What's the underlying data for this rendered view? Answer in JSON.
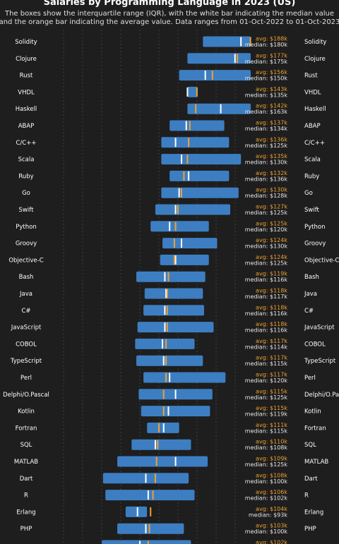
{
  "chart_data": {
    "type": "box",
    "title": "Salaries by Programming Language in 2023 (US)",
    "subtitle_lines": [
      "The boxes show the interquartile range (IQR), with the white bar indicating the median value",
      "and the orange bar indicating the average value. Data ranges from 01-Oct-2022 to 01-Oct-2023"
    ],
    "avg_prefix": "avg: ",
    "median_prefix": "median: ",
    "colors": {
      "background": "#1e1e1e",
      "box": "#3d7ec2",
      "median": "#ffffff",
      "average": "#f0a030",
      "grid": "#555555"
    },
    "grid": true,
    "x_visible_range": [
      13000,
      250000
    ],
    "series": [
      {
        "name": "Solidity",
        "q1": 148000,
        "q3": 250000,
        "median": 180000,
        "avg": 188000,
        "avg_label": "$188k",
        "median_label": "$180k"
      },
      {
        "name": "Clojure",
        "q1": 135000,
        "q3": 238000,
        "median": 175000,
        "avg": 177000,
        "avg_label": "$177k",
        "median_label": "$175k"
      },
      {
        "name": "Rust",
        "q1": 128000,
        "q3": 210000,
        "median": 150000,
        "avg": 156000,
        "avg_label": "$156k",
        "median_label": "$150k"
      },
      {
        "name": "VHDL",
        "q1": 135000,
        "q3": 143000,
        "median": 135000,
        "avg": 143000,
        "avg_label": "$143k",
        "median_label": "$135k"
      },
      {
        "name": "Haskell",
        "q1": 135000,
        "q3": 190000,
        "median": 163000,
        "avg": 142000,
        "avg_label": "$142k",
        "median_label": "$163k"
      },
      {
        "name": "ABAP",
        "q1": 120000,
        "q3": 166000,
        "median": 134000,
        "avg": 137000,
        "avg_label": "$137k",
        "median_label": "$134k"
      },
      {
        "name": "C/C++",
        "q1": 113000,
        "q3": 170000,
        "median": 125000,
        "avg": 136000,
        "avg_label": "$136k",
        "median_label": "$125k"
      },
      {
        "name": "Scala",
        "q1": 113000,
        "q3": 180000,
        "median": 130000,
        "avg": 135000,
        "avg_label": "$135k",
        "median_label": "$130k"
      },
      {
        "name": "Ruby",
        "q1": 120000,
        "q3": 170000,
        "median": 136000,
        "avg": 132000,
        "avg_label": "$132k",
        "median_label": "$136k"
      },
      {
        "name": "Go",
        "q1": 113000,
        "q3": 178000,
        "median": 128000,
        "avg": 130000,
        "avg_label": "$130k",
        "median_label": "$128k"
      },
      {
        "name": "Swift",
        "q1": 108000,
        "q3": 171000,
        "median": 125000,
        "avg": 127000,
        "avg_label": "$127k",
        "median_label": "$125k"
      },
      {
        "name": "Python",
        "q1": 104000,
        "q3": 153000,
        "median": 120000,
        "avg": 125000,
        "avg_label": "$125k",
        "median_label": "$120k"
      },
      {
        "name": "Groovy",
        "q1": 114000,
        "q3": 160000,
        "median": 130000,
        "avg": 124000,
        "avg_label": "$124k",
        "median_label": "$130k"
      },
      {
        "name": "Objective-C",
        "q1": 112000,
        "q3": 153000,
        "median": 125000,
        "avg": 124000,
        "avg_label": "$124k",
        "median_label": "$125k"
      },
      {
        "name": "Bash",
        "q1": 92000,
        "q3": 150000,
        "median": 116000,
        "avg": 119000,
        "avg_label": "$119k",
        "median_label": "$116k"
      },
      {
        "name": "Java",
        "q1": 99000,
        "q3": 148000,
        "median": 117000,
        "avg": 118000,
        "avg_label": "$118k",
        "median_label": "$117k"
      },
      {
        "name": "C#",
        "q1": 98000,
        "q3": 149000,
        "median": 116000,
        "avg": 118000,
        "avg_label": "$118k",
        "median_label": "$116k"
      },
      {
        "name": "JavaScript",
        "q1": 93000,
        "q3": 157000,
        "median": 116000,
        "avg": 118000,
        "avg_label": "$118k",
        "median_label": "$116k"
      },
      {
        "name": "COBOL",
        "q1": 91000,
        "q3": 141000,
        "median": 114000,
        "avg": 117000,
        "avg_label": "$117k",
        "median_label": "$114k"
      },
      {
        "name": "TypeScript",
        "q1": 92000,
        "q3": 148000,
        "median": 115000,
        "avg": 117000,
        "avg_label": "$117k",
        "median_label": "$115k"
      },
      {
        "name": "Perl",
        "q1": 98000,
        "q3": 167000,
        "median": 120000,
        "avg": 117000,
        "avg_label": "$117k",
        "median_label": "$120k"
      },
      {
        "name": "Delphi/O.Pascal",
        "q1": 94000,
        "q3": 156000,
        "median": 125000,
        "avg": 115000,
        "avg_label": "$115k",
        "median_label": "$125k"
      },
      {
        "name": "Kotlin",
        "q1": 96000,
        "q3": 154000,
        "median": 119000,
        "avg": 115000,
        "avg_label": "$115k",
        "median_label": "$119k"
      },
      {
        "name": "Fortran",
        "q1": 101000,
        "q3": 128000,
        "median": 115000,
        "avg": 111000,
        "avg_label": "$111k",
        "median_label": "$115k"
      },
      {
        "name": "SQL",
        "q1": 88000,
        "q3": 138000,
        "median": 108000,
        "avg": 110000,
        "avg_label": "$110k",
        "median_label": "$108k"
      },
      {
        "name": "MATLAB",
        "q1": 76000,
        "q3": 152000,
        "median": 125000,
        "avg": 109000,
        "avg_label": "$109k",
        "median_label": "$125k"
      },
      {
        "name": "Dart",
        "q1": 64000,
        "q3": 136000,
        "median": 100000,
        "avg": 108000,
        "avg_label": "$108k",
        "median_label": "$100k"
      },
      {
        "name": "R",
        "q1": 66000,
        "q3": 141000,
        "median": 102000,
        "avg": 106000,
        "avg_label": "$106k",
        "median_label": "$102k"
      },
      {
        "name": "Erlang",
        "q1": 83000,
        "q3": 101000,
        "median": 93000,
        "avg": 104000,
        "avg_label": "$104k",
        "median_label": "$93k"
      },
      {
        "name": "PHP",
        "q1": 76000,
        "q3": 132000,
        "median": 100000,
        "avg": 103000,
        "avg_label": "$103k",
        "median_label": "$100k"
      },
      {
        "name": "",
        "q1": 63000,
        "q3": 138000,
        "median": 95000,
        "avg": 102000,
        "avg_label": "$102k",
        "median_label": ""
      }
    ]
  }
}
